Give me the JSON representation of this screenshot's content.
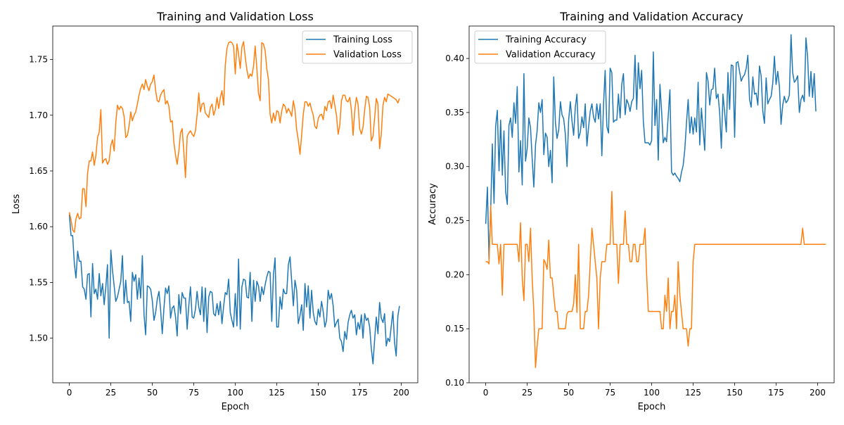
{
  "chart_data": [
    {
      "type": "line",
      "title": "Training and Validation Loss",
      "xlabel": "Epoch",
      "ylabel": "Loss",
      "xlim": [
        -10,
        210
      ],
      "ylim": [
        1.46,
        1.78
      ],
      "xticks": [
        0,
        25,
        50,
        75,
        100,
        125,
        150,
        175,
        200
      ],
      "yticks": [
        1.5,
        1.55,
        1.6,
        1.65,
        1.7,
        1.75
      ],
      "ytick_labels": [
        "1.50",
        "1.55",
        "1.60",
        "1.65",
        "1.70",
        "1.75"
      ],
      "grid": false,
      "legend": "upper right",
      "series": [
        {
          "name": "Training Loss",
          "color": "#1f77b4",
          "values": [
            1.611,
            1.592,
            1.592,
            1.567,
            1.554,
            1.578,
            1.569,
            1.569,
            1.546,
            1.544,
            1.535,
            1.557,
            1.558,
            1.519,
            1.567,
            1.54,
            1.544,
            1.535,
            1.558,
            1.538,
            1.549,
            1.53,
            1.546,
            1.566,
            1.5,
            1.579,
            1.561,
            1.547,
            1.533,
            1.537,
            1.544,
            1.551,
            1.574,
            1.531,
            1.552,
            1.532,
            1.533,
            1.515,
            1.559,
            1.551,
            1.557,
            1.535,
            1.554,
            1.536,
            1.574,
            1.521,
            1.503,
            1.547,
            1.546,
            1.544,
            1.534,
            1.516,
            1.523,
            1.535,
            1.542,
            1.526,
            1.504,
            1.527,
            1.545,
            1.54,
            1.547,
            1.518,
            1.527,
            1.529,
            1.519,
            1.502,
            1.539,
            1.522,
            1.541,
            1.536,
            1.536,
            1.508,
            1.529,
            1.546,
            1.519,
            1.518,
            1.526,
            1.542,
            1.528,
            1.521,
            1.546,
            1.515,
            1.545,
            1.505,
            1.537,
            1.542,
            1.541,
            1.522,
            1.52,
            1.531,
            1.521,
            1.533,
            1.513,
            1.529,
            1.541,
            1.539,
            1.553,
            1.523,
            1.516,
            1.51,
            1.54,
            1.511,
            1.571,
            1.508,
            1.546,
            1.553,
            1.552,
            1.537,
            1.536,
            1.559,
            1.515,
            1.552,
            1.533,
            1.551,
            1.547,
            1.533,
            1.546,
            1.539,
            1.548,
            1.555,
            1.56,
            1.559,
            1.515,
            1.557,
            1.572,
            1.51,
            1.51,
            1.537,
            1.526,
            1.544,
            1.54,
            1.54,
            1.566,
            1.573,
            1.551,
            1.529,
            1.552,
            1.543,
            1.513,
            1.52,
            1.53,
            1.507,
            1.549,
            1.528,
            1.547,
            1.518,
            1.543,
            1.523,
            1.515,
            1.512,
            1.526,
            1.519,
            1.533,
            1.524,
            1.51,
            1.516,
            1.543,
            1.535,
            1.54,
            1.529,
            1.51,
            1.514,
            1.517,
            1.5,
            1.497,
            1.488,
            1.506,
            1.499,
            1.514,
            1.521,
            1.525,
            1.518,
            1.521,
            1.503,
            1.514,
            1.508,
            1.521,
            1.5,
            1.522,
            1.516,
            1.518,
            1.51,
            1.491,
            1.477,
            1.499,
            1.519,
            1.504,
            1.532,
            1.518,
            1.514,
            1.522,
            1.493,
            1.5,
            1.497,
            1.511,
            1.524,
            1.496,
            1.484,
            1.52,
            1.529
          ]
        },
        {
          "name": "Validation Loss",
          "color": "#ff7f0e",
          "values": [
            1.613,
            1.606,
            1.597,
            1.595,
            1.607,
            1.612,
            1.607,
            1.608,
            1.634,
            1.634,
            1.618,
            1.648,
            1.659,
            1.659,
            1.667,
            1.655,
            1.664,
            1.68,
            1.685,
            1.705,
            1.657,
            1.66,
            1.661,
            1.656,
            1.659,
            1.673,
            1.678,
            1.668,
            1.693,
            1.709,
            1.705,
            1.708,
            1.706,
            1.699,
            1.68,
            1.682,
            1.69,
            1.703,
            1.695,
            1.7,
            1.703,
            1.71,
            1.718,
            1.724,
            1.728,
            1.723,
            1.732,
            1.726,
            1.722,
            1.728,
            1.73,
            1.736,
            1.722,
            1.713,
            1.712,
            1.718,
            1.721,
            1.723,
            1.71,
            1.713,
            1.708,
            1.694,
            1.695,
            1.676,
            1.664,
            1.656,
            1.668,
            1.684,
            1.688,
            1.667,
            1.644,
            1.681,
            1.684,
            1.686,
            1.683,
            1.681,
            1.686,
            1.7,
            1.72,
            1.703,
            1.71,
            1.711,
            1.702,
            1.7,
            1.698,
            1.707,
            1.71,
            1.7,
            1.705,
            1.716,
            1.706,
            1.716,
            1.722,
            1.709,
            1.745,
            1.76,
            1.765,
            1.766,
            1.765,
            1.762,
            1.737,
            1.764,
            1.755,
            1.742,
            1.761,
            1.766,
            1.752,
            1.741,
            1.733,
            1.737,
            1.735,
            1.744,
            1.762,
            1.742,
            1.72,
            1.713,
            1.765,
            1.764,
            1.758,
            1.742,
            1.732,
            1.701,
            1.693,
            1.702,
            1.695,
            1.704,
            1.703,
            1.693,
            1.704,
            1.71,
            1.708,
            1.702,
            1.706,
            1.703,
            1.699,
            1.713,
            1.705,
            1.687,
            1.678,
            1.665,
            1.682,
            1.701,
            1.712,
            1.712,
            1.708,
            1.711,
            1.705,
            1.7,
            1.69,
            1.688,
            1.697,
            1.7,
            1.701,
            1.696,
            1.708,
            1.704,
            1.712,
            1.713,
            1.706,
            1.718,
            1.709,
            1.7,
            1.683,
            1.691,
            1.713,
            1.718,
            1.718,
            1.713,
            1.712,
            1.716,
            1.705,
            1.682,
            1.704,
            1.716,
            1.71,
            1.688,
            1.683,
            1.689,
            1.705,
            1.717,
            1.716,
            1.707,
            1.677,
            1.681,
            1.698,
            1.715,
            1.71,
            1.67,
            1.683,
            1.709,
            1.716,
            1.712,
            1.719,
            1.718,
            1.717,
            1.716,
            1.715,
            1.714,
            1.711,
            1.715
          ]
        }
      ]
    },
    {
      "type": "line",
      "title": "Training and Validation Accuracy",
      "xlabel": "Epoch",
      "ylabel": "Accuracy",
      "xlim": [
        -10,
        210
      ],
      "ylim": [
        0.1,
        0.43
      ],
      "xticks": [
        0,
        25,
        50,
        75,
        100,
        125,
        150,
        175,
        200
      ],
      "yticks": [
        0.1,
        0.15,
        0.2,
        0.25,
        0.3,
        0.35,
        0.4
      ],
      "ytick_labels": [
        "0.10",
        "0.15",
        "0.20",
        "0.25",
        "0.30",
        "0.35",
        "0.40"
      ],
      "grid": false,
      "legend": "upper left",
      "series": [
        {
          "name": "Training Accuracy",
          "color": "#1f77b4",
          "values": [
            0.247,
            0.281,
            0.214,
            0.26,
            0.321,
            0.266,
            0.337,
            0.352,
            0.296,
            0.343,
            0.292,
            0.333,
            0.277,
            0.265,
            0.338,
            0.345,
            0.327,
            0.359,
            0.34,
            0.374,
            0.295,
            0.324,
            0.283,
            0.386,
            0.305,
            0.317,
            0.345,
            0.336,
            0.308,
            0.281,
            0.32,
            0.333,
            0.359,
            0.35,
            0.362,
            0.311,
            0.331,
            0.327,
            0.3,
            0.315,
            0.285,
            0.383,
            0.341,
            0.326,
            0.334,
            0.36,
            0.348,
            0.344,
            0.33,
            0.3,
            0.343,
            0.36,
            0.342,
            0.329,
            0.355,
            0.367,
            0.326,
            0.332,
            0.346,
            0.336,
            0.358,
            0.319,
            0.337,
            0.351,
            0.358,
            0.346,
            0.341,
            0.358,
            0.344,
            0.358,
            0.31,
            0.357,
            0.389,
            0.337,
            0.331,
            0.391,
            0.387,
            0.341,
            0.343,
            0.343,
            0.367,
            0.345,
            0.376,
            0.386,
            0.348,
            0.362,
            0.358,
            0.351,
            0.36,
            0.363,
            0.403,
            0.353,
            0.396,
            0.372,
            0.389,
            0.342,
            0.322,
            0.322,
            0.322,
            0.32,
            0.324,
            0.406,
            0.338,
            0.362,
            0.306,
            0.376,
            0.351,
            0.322,
            0.327,
            0.323,
            0.347,
            0.371,
            0.295,
            0.292,
            0.294,
            0.291,
            0.289,
            0.286,
            0.295,
            0.301,
            0.316,
            0.34,
            0.362,
            0.331,
            0.346,
            0.33,
            0.345,
            0.332,
            0.378,
            0.32,
            0.354,
            0.335,
            0.315,
            0.387,
            0.379,
            0.357,
            0.371,
            0.372,
            0.391,
            0.363,
            0.367,
            0.35,
            0.317,
            0.367,
            0.35,
            0.332,
            0.387,
            0.353,
            0.394,
            0.393,
            0.327,
            0.396,
            0.397,
            0.388,
            0.379,
            0.383,
            0.385,
            0.391,
            0.403,
            0.362,
            0.355,
            0.383,
            0.367,
            0.368,
            0.357,
            0.393,
            0.384,
            0.351,
            0.34,
            0.382,
            0.358,
            0.362,
            0.365,
            0.377,
            0.402,
            0.376,
            0.388,
            0.374,
            0.339,
            0.357,
            0.365,
            0.359,
            0.361,
            0.366,
            0.422,
            0.387,
            0.378,
            0.38,
            0.384,
            0.35,
            0.362,
            0.366,
            0.36,
            0.419,
            0.401,
            0.365,
            0.388,
            0.364,
            0.386,
            0.351
          ]
        },
        {
          "name": "Validation Accuracy",
          "color": "#ff7f0e",
          "values": [
            0.212,
            0.212,
            0.21,
            0.264,
            0.228,
            0.228,
            0.228,
            0.228,
            0.21,
            0.228,
            0.181,
            0.228,
            0.228,
            0.228,
            0.228,
            0.228,
            0.228,
            0.228,
            0.228,
            0.228,
            0.212,
            0.248,
            0.197,
            0.176,
            0.228,
            0.228,
            0.212,
            0.243,
            0.197,
            0.166,
            0.114,
            0.134,
            0.15,
            0.15,
            0.15,
            0.214,
            0.211,
            0.205,
            0.232,
            0.197,
            0.197,
            0.181,
            0.166,
            0.166,
            0.15,
            0.15,
            0.15,
            0.15,
            0.15,
            0.164,
            0.166,
            0.166,
            0.166,
            0.173,
            0.2,
            0.165,
            0.228,
            0.15,
            0.15,
            0.15,
            0.166,
            0.166,
            0.181,
            0.212,
            0.243,
            0.228,
            0.212,
            0.197,
            0.15,
            0.197,
            0.212,
            0.212,
            0.212,
            0.228,
            0.228,
            0.228,
            0.277,
            0.228,
            0.228,
            0.228,
            0.192,
            0.228,
            0.228,
            0.228,
            0.259,
            0.228,
            0.228,
            0.212,
            0.212,
            0.228,
            0.228,
            0.212,
            0.212,
            0.228,
            0.228,
            0.228,
            0.243,
            0.2,
            0.166,
            0.166,
            0.166,
            0.166,
            0.166,
            0.166,
            0.166,
            0.166,
            0.15,
            0.15,
            0.181,
            0.166,
            0.197,
            0.15,
            0.166,
            0.166,
            0.181,
            0.15,
            0.212,
            0.181,
            0.165,
            0.15,
            0.15,
            0.15,
            0.134,
            0.15,
            0.15,
            0.212,
            0.228,
            0.228,
            0.228,
            0.228,
            0.228,
            0.228,
            0.228,
            0.228,
            0.228,
            0.228,
            0.228,
            0.228,
            0.228,
            0.228,
            0.228,
            0.228,
            0.228,
            0.228,
            0.228,
            0.228,
            0.228,
            0.228,
            0.228,
            0.228,
            0.228,
            0.228,
            0.228,
            0.228,
            0.228,
            0.228,
            0.228,
            0.228,
            0.228,
            0.228,
            0.228,
            0.228,
            0.228,
            0.228,
            0.228,
            0.228,
            0.228,
            0.228,
            0.228,
            0.228,
            0.228,
            0.228,
            0.228,
            0.228,
            0.228,
            0.228,
            0.228,
            0.228,
            0.228,
            0.228,
            0.228,
            0.228,
            0.228,
            0.228,
            0.228,
            0.228,
            0.228,
            0.228,
            0.228,
            0.228,
            0.228,
            0.243,
            0.228,
            0.228,
            0.228,
            0.228,
            0.228,
            0.228,
            0.228,
            0.228,
            0.228,
            0.228,
            0.228,
            0.228,
            0.228,
            0.228
          ]
        }
      ]
    }
  ]
}
